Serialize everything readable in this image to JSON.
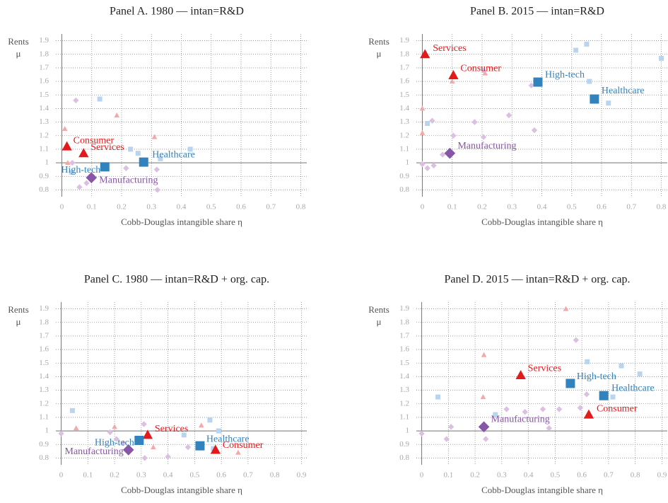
{
  "chart_data": [
    {
      "type": "scatter",
      "title": "Panel A. 1980 — intan=R&D",
      "xlabel": "Cobb-Douglas intangible share η",
      "ylabel": [
        "Rents",
        "μ"
      ],
      "xlim": [
        -0.02,
        0.82
      ],
      "ylim": [
        0.75,
        1.95
      ],
      "xticks": [
        0,
        0.1,
        0.2,
        0.3,
        0.4,
        0.5,
        0.6,
        0.7,
        0.8
      ],
      "yticks": [
        0.8,
        0.9,
        1,
        1.1,
        1.2,
        1.3,
        1.4,
        1.5,
        1.6,
        1.7,
        1.8,
        1.9
      ],
      "grid": true,
      "hline": 1,
      "vline": 0,
      "series": [
        {
          "name": "Consumer",
          "color": "#e31a1c",
          "marker": "triangle",
          "x": [
            0.017
          ],
          "y": [
            1.12
          ]
        },
        {
          "name": "Services",
          "color": "#e31a1c",
          "marker": "triangle",
          "x": [
            0.073
          ],
          "y": [
            1.07
          ]
        },
        {
          "name": "High-tech",
          "color": "#3182bd",
          "marker": "square",
          "x": [
            0.144
          ],
          "y": [
            0.97
          ]
        },
        {
          "name": "Healthcare",
          "color": "#3182bd",
          "marker": "square",
          "x": [
            0.274
          ],
          "y": [
            1.005
          ]
        },
        {
          "name": "Manufacturing",
          "color": "#8856a7",
          "marker": "diamond",
          "x": [
            0.099
          ],
          "y": [
            0.89
          ]
        }
      ],
      "background": [
        {
          "marker": "triangle",
          "color": "#f4a9a8",
          "x": [
            0.01,
            0.184,
            0.31,
            0.02
          ],
          "y": [
            1.25,
            1.35,
            1.19,
            1.0
          ]
        },
        {
          "marker": "square",
          "color": "#b8d4ee",
          "x": [
            0.127,
            0.23,
            0.255,
            0.43,
            0.033,
            0.33
          ],
          "y": [
            1.47,
            1.1,
            1.07,
            1.1,
            0.93,
            1.03
          ]
        },
        {
          "marker": "diamond",
          "color": "#dcc0e2",
          "x": [
            0.047,
            0.059,
            0.083,
            0.215,
            0.32,
            0.318,
            0.035
          ],
          "y": [
            1.46,
            0.82,
            0.85,
            0.96,
            0.8,
            0.95,
            1.0
          ]
        }
      ]
    },
    {
      "type": "scatter",
      "title": "Panel B. 2015 — intan=R&D",
      "xlabel": "Cobb-Douglas intangible share η",
      "ylabel": [
        "Rents",
        "μ"
      ],
      "xlim": [
        -0.02,
        0.82
      ],
      "ylim": [
        0.75,
        1.95
      ],
      "xticks": [
        0,
        0.1,
        0.2,
        0.3,
        0.4,
        0.5,
        0.6,
        0.7,
        0.8
      ],
      "yticks": [
        0.8,
        0.9,
        1,
        1.1,
        1.2,
        1.3,
        1.4,
        1.5,
        1.6,
        1.7,
        1.8,
        1.9
      ],
      "grid": true,
      "hline": 1,
      "vline": 0,
      "series": [
        {
          "name": "Consumer",
          "color": "#e31a1c",
          "marker": "triangle",
          "x": [
            0.104
          ],
          "y": [
            1.645
          ]
        },
        {
          "name": "Services",
          "color": "#e31a1c",
          "marker": "triangle",
          "x": [
            0.009
          ],
          "y": [
            1.8
          ]
        },
        {
          "name": "High-tech",
          "color": "#3182bd",
          "marker": "square",
          "x": [
            0.387
          ],
          "y": [
            1.595
          ]
        },
        {
          "name": "Healthcare",
          "color": "#3182bd",
          "marker": "square",
          "x": [
            0.576
          ],
          "y": [
            1.47
          ]
        },
        {
          "name": "Manufacturing",
          "color": "#8856a7",
          "marker": "diamond",
          "x": [
            0.092
          ],
          "y": [
            1.07
          ]
        }
      ],
      "background": [
        {
          "marker": "triangle",
          "color": "#f4a9a8",
          "x": [
            0,
            0,
            0.1,
            0.21
          ],
          "y": [
            1.4,
            1.22,
            1.6,
            1.66
          ]
        },
        {
          "marker": "square",
          "color": "#b8d4ee",
          "x": [
            0.514,
            0.55,
            0.8,
            0.623,
            0.559,
            0.017
          ],
          "y": [
            1.83,
            1.875,
            1.77,
            1.44,
            1.6,
            1.29
          ]
        },
        {
          "marker": "diamond",
          "color": "#dcc0e2",
          "x": [
            0.033,
            0.205,
            0.365,
            0.29,
            0.375,
            0.175,
            0.104,
            0,
            0.017,
            0.038,
            0.068,
            0.205
          ],
          "y": [
            1.31,
            1.68,
            1.57,
            1.35,
            1.24,
            1.3,
            1.2,
            0.99,
            0.96,
            0.98,
            1.06,
            1.19
          ]
        }
      ]
    },
    {
      "type": "scatter",
      "title": "Panel C. 1980 — intan=R&D + org. cap.",
      "xlabel": "Cobb-Douglas intangible share η",
      "ylabel": [
        "Rents",
        "μ"
      ],
      "xlim": [
        -0.02,
        0.92
      ],
      "ylim": [
        0.75,
        1.95
      ],
      "xticks": [
        0,
        0.1,
        0.2,
        0.3,
        0.4,
        0.5,
        0.6,
        0.7,
        0.8,
        0.9
      ],
      "yticks": [
        0.8,
        0.9,
        1,
        1.1,
        1.2,
        1.3,
        1.4,
        1.5,
        1.6,
        1.7,
        1.8,
        1.9
      ],
      "grid": true,
      "hline": 1,
      "vline": 0,
      "series": [
        {
          "name": "Consumer",
          "color": "#e31a1c",
          "marker": "triangle",
          "x": [
            0.578
          ],
          "y": [
            0.86
          ]
        },
        {
          "name": "Services",
          "color": "#e31a1c",
          "marker": "triangle",
          "x": [
            0.324
          ],
          "y": [
            0.97
          ]
        },
        {
          "name": "High-tech",
          "color": "#3182bd",
          "marker": "square",
          "x": [
            0.292
          ],
          "y": [
            0.93
          ]
        },
        {
          "name": "Healthcare",
          "color": "#3182bd",
          "marker": "square",
          "x": [
            0.52
          ],
          "y": [
            0.89
          ]
        },
        {
          "name": "Manufacturing",
          "color": "#8856a7",
          "marker": "diamond",
          "x": [
            0.252
          ],
          "y": [
            0.86
          ]
        }
      ],
      "background": [
        {
          "marker": "triangle",
          "color": "#f4a9a8",
          "x": [
            0.056,
            0.2,
            0.525,
            0.345,
            0.663
          ],
          "y": [
            1.02,
            1.03,
            1.04,
            0.88,
            0.84
          ]
        },
        {
          "marker": "square",
          "color": "#b8d4ee",
          "x": [
            0.042,
            0.557,
            0.59,
            0.46,
            0.57
          ],
          "y": [
            1.15,
            1.08,
            1.0,
            0.97,
            0.87
          ]
        },
        {
          "marker": "diamond",
          "color": "#dcc0e2",
          "x": [
            0,
            0.31,
            0.183,
            0.313,
            0.4,
            0.475,
            0.207,
            0.233
          ],
          "y": [
            0.98,
            1.05,
            0.99,
            0.8,
            0.81,
            0.88,
            0.94,
            0.91
          ]
        }
      ]
    },
    {
      "type": "scatter",
      "title": "Panel D. 2015 — intan=R&D + org. cap.",
      "xlabel": "Cobb-Douglas intangible share η",
      "ylabel": [
        "Rents",
        "μ"
      ],
      "xlim": [
        -0.02,
        0.92
      ],
      "ylim": [
        0.75,
        1.95
      ],
      "xticks": [
        0,
        0.1,
        0.2,
        0.3,
        0.4,
        0.5,
        0.6,
        0.7,
        0.8,
        0.9
      ],
      "yticks": [
        0.8,
        0.9,
        1,
        1.1,
        1.2,
        1.3,
        1.4,
        1.5,
        1.6,
        1.7,
        1.8,
        1.9
      ],
      "grid": true,
      "hline": 1,
      "vline": 0,
      "series": [
        {
          "name": "Consumer",
          "color": "#e31a1c",
          "marker": "triangle",
          "x": [
            0.626
          ],
          "y": [
            1.12
          ]
        },
        {
          "name": "Services",
          "color": "#e31a1c",
          "marker": "triangle",
          "x": [
            0.371
          ],
          "y": [
            1.41
          ]
        },
        {
          "name": "High-tech",
          "color": "#3182bd",
          "marker": "square",
          "x": [
            0.557
          ],
          "y": [
            1.35
          ]
        },
        {
          "name": "Healthcare",
          "color": "#3182bd",
          "marker": "square",
          "x": [
            0.682
          ],
          "y": [
            1.26
          ]
        },
        {
          "name": "Manufacturing",
          "color": "#8856a7",
          "marker": "diamond",
          "x": [
            0.233
          ],
          "y": [
            1.03
          ]
        }
      ],
      "background": [
        {
          "marker": "triangle",
          "color": "#f4a9a8",
          "x": [
            0.54,
            0.233,
            0.23
          ],
          "y": [
            1.9,
            1.56,
            1.25
          ]
        },
        {
          "marker": "square",
          "color": "#b8d4ee",
          "x": [
            0.061,
            0.62,
            0.748,
            0.817,
            0.716,
            0.276
          ],
          "y": [
            1.25,
            1.51,
            1.48,
            1.42,
            1.25,
            1.12
          ]
        },
        {
          "marker": "diamond",
          "color": "#dcc0e2",
          "x": [
            0.578,
            0,
            0.11,
            0.093,
            0.24,
            0.318,
            0.387,
            0.454,
            0.515,
            0.477,
            0.618,
            0.594
          ],
          "y": [
            1.67,
            0.98,
            1.03,
            0.94,
            0.94,
            1.16,
            1.14,
            1.16,
            1.16,
            1.02,
            1.27,
            1.17
          ]
        }
      ]
    }
  ]
}
